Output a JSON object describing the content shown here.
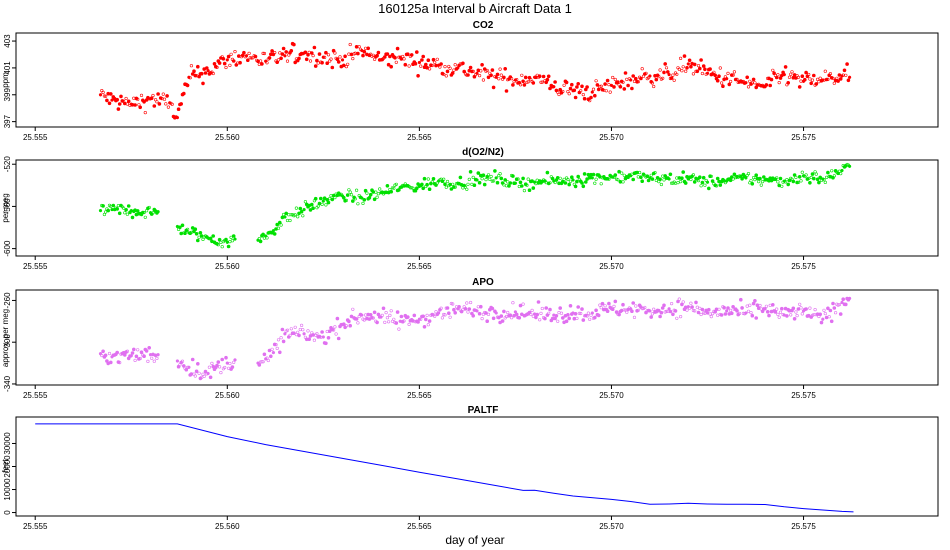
{
  "title": "160125a   Interval b Aircraft Data 1",
  "xlabel": "day of year",
  "colors": {
    "co2": "#ff0000",
    "o2n2": "#00e000",
    "apo": "#e070f0",
    "paltf": "#0000ff",
    "frame": "#000000"
  },
  "chart_data": [
    {
      "type": "scatter",
      "key": "co2",
      "title": "CO2",
      "ylabel": "ppm",
      "xlim": [
        25.5545,
        25.5785
      ],
      "ylim": [
        396.6,
        403.6
      ],
      "xticks": [
        25.555,
        25.56,
        25.565,
        25.57,
        25.575
      ],
      "xtick_labels": [
        "25.555",
        "25.560",
        "25.565",
        "25.570",
        "25.575"
      ],
      "yticks": [
        397,
        399,
        401,
        403
      ],
      "ytick_labels": [
        "397",
        "399",
        "401",
        "403"
      ],
      "x": [
        25.5567,
        25.557,
        25.5575,
        25.558,
        25.5585,
        25.5587,
        25.559,
        25.5595,
        25.56,
        25.5605,
        25.561,
        25.5615,
        25.562,
        25.5625,
        25.563,
        25.5635,
        25.564,
        25.5645,
        25.565,
        25.5655,
        25.566,
        25.5665,
        25.567,
        25.5675,
        25.568,
        25.5685,
        25.569,
        25.5695,
        25.57,
        25.5705,
        25.571,
        25.5715,
        25.572,
        25.5725,
        25.573,
        25.5735,
        25.574,
        25.5745,
        25.575,
        25.5755,
        25.576,
        25.5762
      ],
      "y": [
        399.0,
        398.6,
        398.3,
        398.7,
        398.4,
        397.3,
        400.3,
        400.8,
        401.6,
        401.9,
        401.5,
        401.9,
        402.1,
        401.8,
        401.6,
        402.3,
        401.6,
        401.8,
        401.4,
        401.2,
        401.0,
        400.6,
        400.3,
        400.1,
        400.3,
        399.6,
        399.3,
        399.2,
        399.7,
        400.1,
        400.4,
        400.5,
        401.3,
        400.6,
        400.2,
        399.9,
        399.6,
        400.5,
        400.0,
        400.1,
        400.4,
        400.3
      ]
    },
    {
      "type": "scatter",
      "key": "o2n2",
      "title": "d(O2/N2)",
      "ylabel": "per meg",
      "xlim": [
        25.5545,
        25.5785
      ],
      "ylim": [
        -607,
        -516
      ],
      "xticks": [
        25.555,
        25.56,
        25.565,
        25.57,
        25.575
      ],
      "xtick_labels": [
        "25.555",
        "25.560",
        "25.565",
        "25.570",
        "25.575"
      ],
      "yticks": [
        -600,
        -560,
        -520
      ],
      "ytick_labels": [
        "-600",
        "-560",
        "-520"
      ],
      "x": [
        25.5567,
        25.557,
        25.5575,
        25.558,
        25.5582,
        null,
        25.5587,
        25.559,
        25.5595,
        25.56,
        25.5602,
        null,
        25.5608,
        25.561,
        25.5612,
        25.5615,
        25.562,
        25.5625,
        25.563,
        25.5635,
        25.564,
        25.5645,
        25.565,
        25.5655,
        25.566,
        25.5665,
        25.567,
        25.5675,
        25.568,
        25.5685,
        25.569,
        25.5695,
        25.57,
        25.5705,
        25.571,
        25.5715,
        25.572,
        25.5725,
        25.573,
        25.5735,
        25.574,
        25.5745,
        25.575,
        25.5755,
        25.576,
        25.5762
      ],
      "y": [
        -564,
        -563,
        -564,
        -566,
        -565,
        null,
        -579,
        -585,
        -590,
        -594,
        -591,
        null,
        -592,
        -588,
        -583,
        -570,
        -563,
        -555,
        -550,
        -552,
        -547,
        -542,
        -541,
        -536,
        -538,
        -535,
        -533,
        -538,
        -537,
        -536,
        -535,
        -533,
        -532,
        -531,
        -533,
        -534,
        -534,
        -537,
        -536,
        -533,
        -535,
        -536,
        -531,
        -534,
        -526,
        -522
      ]
    },
    {
      "type": "scatter",
      "key": "apo",
      "title": "APO",
      "ylabel": "approx. per meg",
      "xlim": [
        25.5545,
        25.5785
      ],
      "ylim": [
        -341,
        -250
      ],
      "xticks": [
        25.555,
        25.56,
        25.565,
        25.57,
        25.575
      ],
      "xtick_labels": [
        "25.555",
        "25.560",
        "25.565",
        "25.570",
        "25.575"
      ],
      "yticks": [
        -340,
        -300,
        -260
      ],
      "ytick_labels": [
        "-340",
        "-300",
        "-260"
      ],
      "x": [
        25.5567,
        25.557,
        25.5575,
        25.558,
        25.5582,
        null,
        25.5587,
        25.559,
        25.5595,
        25.56,
        25.5602,
        null,
        25.5608,
        25.561,
        25.5612,
        25.5615,
        25.562,
        25.5625,
        25.563,
        25.5635,
        25.564,
        25.5645,
        25.565,
        25.5655,
        25.566,
        25.5665,
        25.567,
        25.5675,
        25.568,
        25.5685,
        25.569,
        25.5695,
        25.57,
        25.5705,
        25.571,
        25.5715,
        25.572,
        25.5725,
        25.573,
        25.5735,
        25.574,
        25.5745,
        25.575,
        25.5755,
        25.576,
        25.5762
      ],
      "y": [
        -311,
        -314,
        -313,
        -312,
        -312,
        null,
        -318,
        -324,
        -330,
        -320,
        -317,
        null,
        -320,
        -316,
        -310,
        -292,
        -292,
        -295,
        -283,
        -274,
        -276,
        -280,
        -278,
        -272,
        -268,
        -270,
        -272,
        -271,
        -273,
        -274,
        -272,
        -272,
        -268,
        -268,
        -270,
        -268,
        -266,
        -272,
        -270,
        -272,
        -268,
        -274,
        -270,
        -278,
        -262,
        -258
      ]
    },
    {
      "type": "line",
      "key": "paltf",
      "title": "PALTF",
      "ylabel": "feet",
      "xlim": [
        25.5545,
        25.5785
      ],
      "ylim": [
        -1500,
        41500
      ],
      "xticks": [
        25.555,
        25.56,
        25.565,
        25.57,
        25.575
      ],
      "xtick_labels": [
        "25.555",
        "25.560",
        "25.565",
        "25.570",
        "25.575"
      ],
      "yticks": [
        0,
        10000,
        20000,
        30000
      ],
      "ytick_labels": [
        "0",
        "10000",
        "20000",
        "30000"
      ],
      "x": [
        25.555,
        25.5587,
        25.56,
        25.561,
        25.562,
        25.563,
        25.564,
        25.565,
        25.566,
        25.567,
        25.5677,
        25.568,
        25.5685,
        25.569,
        25.57,
        25.5705,
        25.571,
        25.5715,
        25.572,
        25.5725,
        25.573,
        25.5735,
        25.574,
        25.5745,
        25.575,
        25.5755,
        25.576,
        25.5763
      ],
      "y": [
        38500,
        38500,
        33000,
        29500,
        26500,
        23500,
        20500,
        17500,
        14600,
        11700,
        9600,
        9700,
        8400,
        7200,
        5700,
        4800,
        3600,
        3700,
        4000,
        3700,
        3600,
        3600,
        3500,
        2500,
        1700,
        1100,
        500,
        300
      ]
    }
  ]
}
